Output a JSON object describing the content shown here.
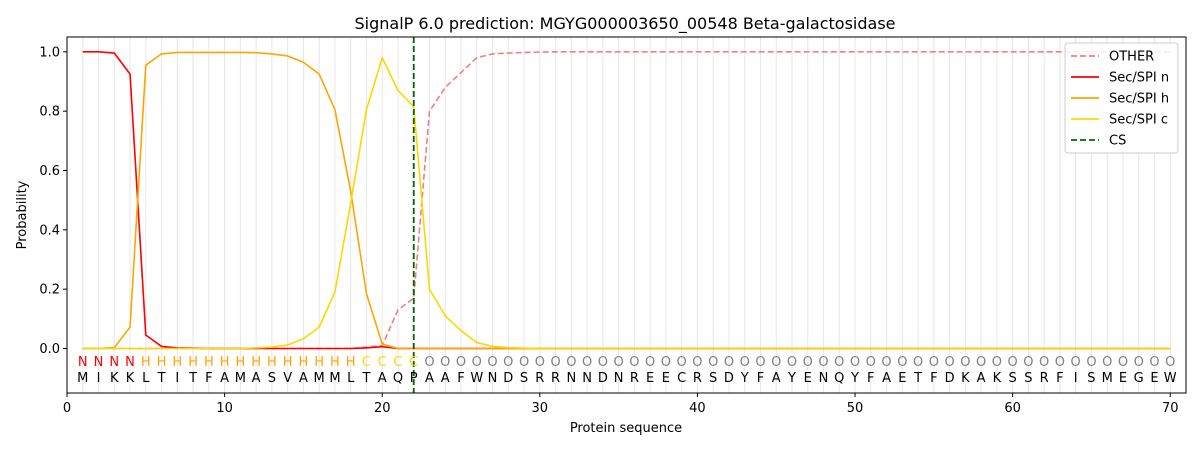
{
  "chart_data": {
    "type": "line",
    "title": "SignalP 6.0 prediction: MGYG000003650_00548 Beta-galactosidase",
    "xlabel": "Protein sequence",
    "ylabel": "Probability",
    "xlim": [
      0,
      71
    ],
    "ylim": [
      -0.15,
      1.05
    ],
    "xticks": [
      0,
      10,
      20,
      30,
      40,
      50,
      60,
      70
    ],
    "yticks": [
      0.0,
      0.2,
      0.4,
      0.6,
      0.8,
      1.0
    ],
    "xtick_labels": [
      "0",
      "10",
      "20",
      "30",
      "40",
      "50",
      "60",
      "70"
    ],
    "ytick_labels": [
      "0.0",
      "0.2",
      "0.4",
      "0.6",
      "0.8",
      "1.0"
    ],
    "sequence": [
      "M",
      "I",
      "K",
      "K",
      "L",
      "T",
      "I",
      "T",
      "F",
      "A",
      "M",
      "A",
      "S",
      "V",
      "A",
      "M",
      "M",
      "L",
      "T",
      "A",
      "Q",
      "P",
      "A",
      "A",
      "F",
      "W",
      "N",
      "D",
      "S",
      "R",
      "R",
      "N",
      "N",
      "D",
      "N",
      "R",
      "E",
      "E",
      "C",
      "R",
      "S",
      "D",
      "Y",
      "F",
      "A",
      "Y",
      "E",
      "N",
      "Q",
      "Y",
      "F",
      "A",
      "E",
      "T",
      "F",
      "D",
      "K",
      "A",
      "K",
      "S",
      "S",
      "R",
      "F",
      "I",
      "S",
      "M",
      "E",
      "G",
      "E",
      "W"
    ],
    "labels": [
      "N",
      "N",
      "N",
      "N",
      "H",
      "H",
      "H",
      "H",
      "H",
      "H",
      "H",
      "H",
      "H",
      "H",
      "H",
      "H",
      "H",
      "H",
      "C",
      "C",
      "C",
      "C",
      "O",
      "O",
      "O",
      "O",
      "O",
      "O",
      "O",
      "O",
      "O",
      "O",
      "O",
      "O",
      "O",
      "O",
      "O",
      "O",
      "O",
      "O",
      "O",
      "O",
      "O",
      "O",
      "O",
      "O",
      "O",
      "O",
      "O",
      "O",
      "O",
      "O",
      "O",
      "O",
      "O",
      "O",
      "O",
      "O",
      "O",
      "O",
      "O",
      "O",
      "O",
      "O",
      "O",
      "O",
      "O",
      "O",
      "O",
      "O"
    ],
    "label_colors": {
      "N": "#ff0000",
      "H": "#ffa500",
      "C": "#ffd700",
      "O": "#808080"
    },
    "cleavage_site": 22,
    "legend": {
      "placement": "top-right",
      "entries": [
        "OTHER",
        "Sec/SPI n",
        "Sec/SPI h",
        "Sec/SPI c",
        "CS"
      ]
    },
    "series": [
      {
        "name": "OTHER",
        "color": "#f08080",
        "dashed": true,
        "values": [
          0.0,
          0.0,
          0.0,
          0.0,
          0.0,
          0.0,
          0.0,
          0.0,
          0.0,
          0.0,
          0.0,
          0.0,
          0.0,
          0.0,
          0.0,
          0.0,
          0.0,
          0.0,
          0.005,
          0.01,
          0.13,
          0.17,
          0.8,
          0.88,
          0.93,
          0.98,
          0.993,
          0.996,
          0.998,
          0.999,
          1.0,
          1.0,
          1.0,
          1.0,
          1.0,
          1.0,
          1.0,
          1.0,
          1.0,
          1.0,
          1.0,
          1.0,
          1.0,
          1.0,
          1.0,
          1.0,
          1.0,
          1.0,
          1.0,
          1.0,
          1.0,
          1.0,
          1.0,
          1.0,
          1.0,
          1.0,
          1.0,
          1.0,
          1.0,
          1.0,
          1.0,
          1.0,
          1.0,
          1.0,
          1.0,
          1.0,
          1.0,
          1.0,
          1.0,
          1.0
        ]
      },
      {
        "name": "Sec/SPI n",
        "color": "#ff0000",
        "dashed": false,
        "values": [
          1.0,
          1.0,
          0.996,
          0.925,
          0.045,
          0.007,
          0.002,
          0.001,
          0.0,
          0.0,
          0.0,
          0.0,
          0.0,
          0.0,
          0.0,
          0.0,
          0.0,
          0.0,
          0.002,
          0.006,
          0.0,
          0.0,
          0.0,
          0.0,
          0.0,
          0.0,
          0.0,
          0.0,
          0.0,
          0.0,
          0.0,
          0.0,
          0.0,
          0.0,
          0.0,
          0.0,
          0.0,
          0.0,
          0.0,
          0.0,
          0.0,
          0.0,
          0.0,
          0.0,
          0.0,
          0.0,
          0.0,
          0.0,
          0.0,
          0.0,
          0.0,
          0.0,
          0.0,
          0.0,
          0.0,
          0.0,
          0.0,
          0.0,
          0.0,
          0.0,
          0.0,
          0.0,
          0.0,
          0.0,
          0.0,
          0.0,
          0.0,
          0.0,
          0.0,
          0.0
        ]
      },
      {
        "name": "Sec/SPI h",
        "color": "#ffa500",
        "dashed": false,
        "values": [
          0.0,
          0.0,
          0.003,
          0.072,
          0.955,
          0.993,
          0.998,
          0.998,
          0.998,
          0.998,
          0.998,
          0.997,
          0.993,
          0.986,
          0.965,
          0.925,
          0.805,
          0.53,
          0.185,
          0.015,
          0.0,
          0.0,
          0.0,
          0.0,
          0.0,
          0.0,
          0.0,
          0.0,
          0.0,
          0.0,
          0.0,
          0.0,
          0.0,
          0.0,
          0.0,
          0.0,
          0.0,
          0.0,
          0.0,
          0.0,
          0.0,
          0.0,
          0.0,
          0.0,
          0.0,
          0.0,
          0.0,
          0.0,
          0.0,
          0.0,
          0.0,
          0.0,
          0.0,
          0.0,
          0.0,
          0.0,
          0.0,
          0.0,
          0.0,
          0.0,
          0.0,
          0.0,
          0.0,
          0.0,
          0.0,
          0.0,
          0.0,
          0.0,
          0.0,
          0.0
        ]
      },
      {
        "name": "Sec/SPI c",
        "color": "#ffd700",
        "dashed": false,
        "values": [
          0.0,
          0.0,
          0.0,
          0.0,
          0.0,
          0.0,
          0.0,
          0.0,
          0.0,
          0.0,
          0.0,
          0.002,
          0.005,
          0.012,
          0.033,
          0.072,
          0.19,
          0.49,
          0.805,
          0.98,
          0.87,
          0.815,
          0.2,
          0.11,
          0.06,
          0.02,
          0.007,
          0.003,
          0.001,
          0.0,
          0.0,
          0.0,
          0.0,
          0.0,
          0.0,
          0.0,
          0.0,
          0.0,
          0.0,
          0.0,
          0.0,
          0.0,
          0.0,
          0.0,
          0.0,
          0.0,
          0.0,
          0.0,
          0.0,
          0.0,
          0.0,
          0.0,
          0.0,
          0.0,
          0.0,
          0.0,
          0.0,
          0.0,
          0.0,
          0.0,
          0.0,
          0.0,
          0.0,
          0.0,
          0.0,
          0.0,
          0.0,
          0.0,
          0.0,
          0.0
        ]
      }
    ],
    "cs_line": {
      "name": "CS",
      "color": "#006400",
      "dashed": true
    }
  }
}
